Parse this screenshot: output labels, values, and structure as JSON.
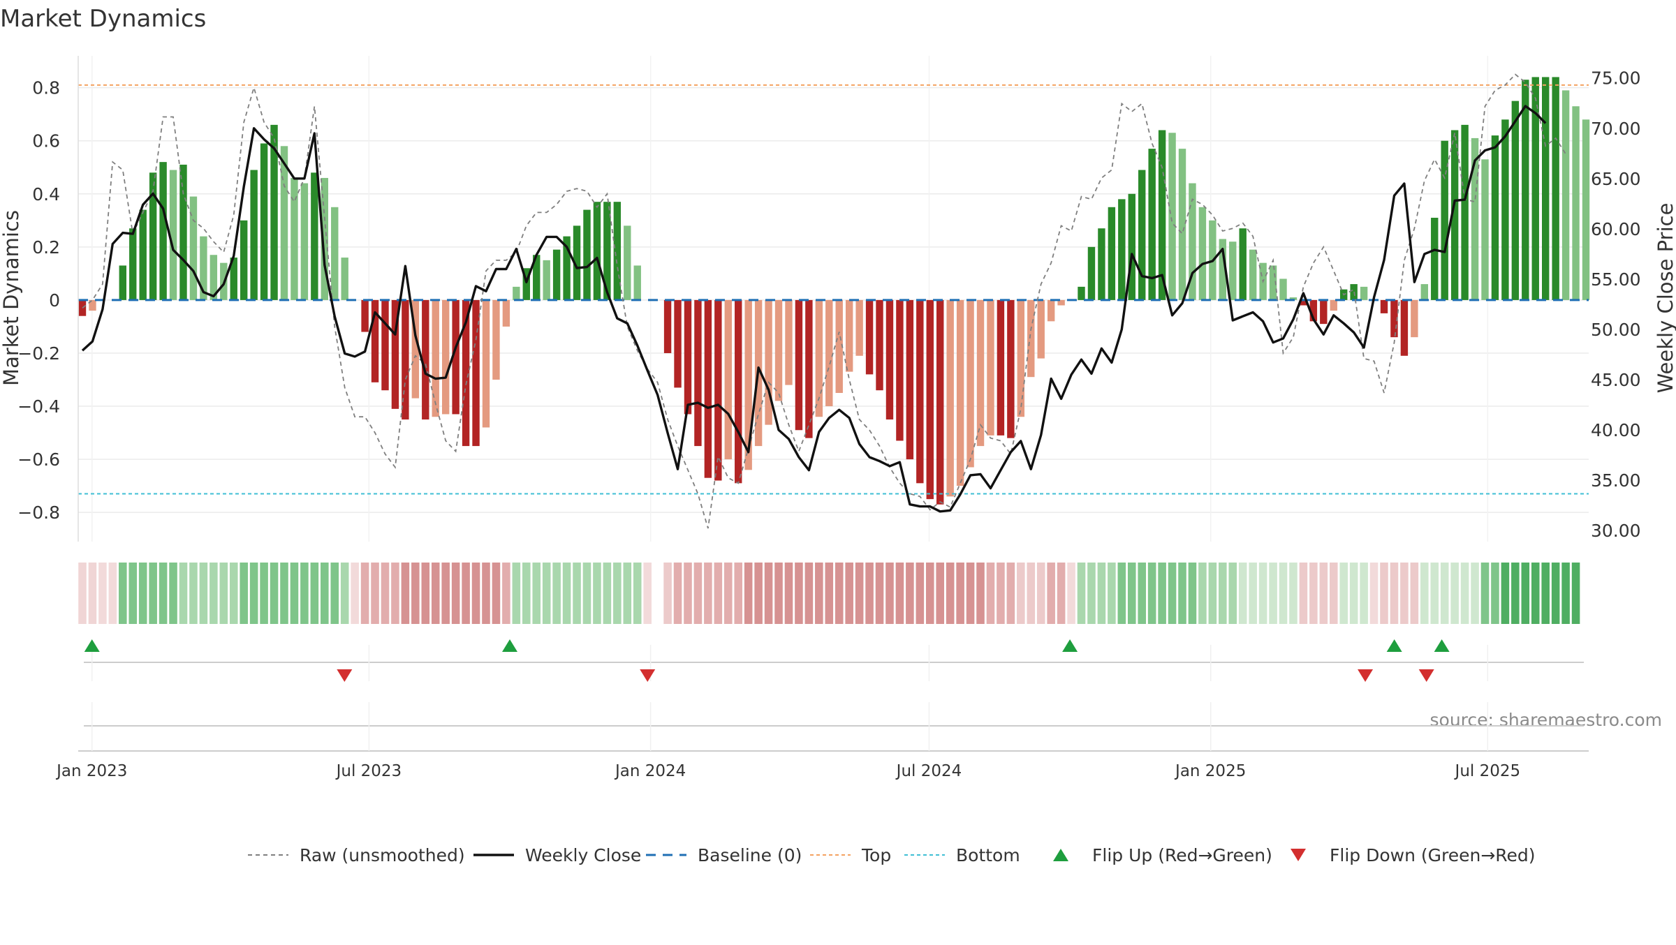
{
  "chart_data": {
    "type": "bar",
    "title": "Market Dynamics",
    "ylabel": "Market Dynamics",
    "ylabel_right": "Weekly Close Price",
    "source_note": "source: sharemaestro.com",
    "ylim": [
      -0.91,
      0.92
    ],
    "ylim_right": [
      28.9,
      77.2
    ],
    "yticks": [
      -0.8,
      -0.6,
      -0.4,
      -0.2,
      0,
      0.2,
      0.4,
      0.6,
      0.8
    ],
    "ytick_labels": [
      "−0.8",
      "−0.6",
      "−0.4",
      "−0.2",
      "0",
      "0.2",
      "0.4",
      "0.6",
      "0.8"
    ],
    "yticks_right": [
      30,
      35,
      40,
      45,
      50,
      55,
      60,
      65,
      70,
      75
    ],
    "ytick_labels_right": [
      "30.00",
      "35.00",
      "40.00",
      "45.00",
      "50.00",
      "55.00",
      "60.00",
      "65.00",
      "70.00",
      "75.00"
    ],
    "x_start": "2022-12-23",
    "x_end": "2025-09-05",
    "xticks": [
      "2023-01-01",
      "2023-07-01",
      "2024-01-01",
      "2024-07-01",
      "2025-01-01",
      "2025-07-01"
    ],
    "xtick_labels": [
      "Jan 2023",
      "Jul 2023",
      "Jan 2024",
      "Jul 2024",
      "Jan 2025",
      "Jul 2025"
    ],
    "bars": [
      -0.06,
      -0.04,
      0,
      0,
      0.13,
      0.27,
      0.34,
      0.48,
      0.52,
      0.49,
      0.51,
      0.39,
      0.24,
      0.17,
      0.14,
      0.16,
      0.3,
      0.49,
      0.59,
      0.66,
      0.58,
      0.46,
      0.44,
      0.48,
      0.46,
      0.35,
      0.16,
      0,
      -0.12,
      -0.31,
      -0.34,
      -0.41,
      -0.45,
      -0.37,
      -0.45,
      -0.44,
      -0.43,
      -0.43,
      -0.55,
      -0.55,
      -0.48,
      -0.3,
      -0.1,
      0.05,
      0.12,
      0.17,
      0.15,
      0.19,
      0.24,
      0.28,
      0.34,
      0.37,
      0.37,
      0.37,
      0.28,
      0.13,
      0,
      0,
      -0.2,
      -0.33,
      -0.43,
      -0.55,
      -0.67,
      -0.68,
      -0.6,
      -0.69,
      -0.64,
      -0.55,
      -0.47,
      -0.38,
      -0.32,
      -0.49,
      -0.52,
      -0.44,
      -0.4,
      -0.35,
      -0.27,
      -0.21,
      -0.28,
      -0.34,
      -0.45,
      -0.53,
      -0.6,
      -0.69,
      -0.75,
      -0.77,
      -0.74,
      -0.7,
      -0.63,
      -0.55,
      -0.51,
      -0.51,
      -0.52,
      -0.44,
      -0.29,
      -0.22,
      -0.08,
      -0.02,
      0,
      0.05,
      0.2,
      0.27,
      0.35,
      0.38,
      0.4,
      0.49,
      0.57,
      0.64,
      0.63,
      0.57,
      0.44,
      0.35,
      0.3,
      0.23,
      0.22,
      0.27,
      0.19,
      0.14,
      0.13,
      0.08,
      0.01,
      -0.02,
      -0.08,
      -0.09,
      -0.04,
      0.04,
      0.06,
      0.05,
      0,
      -0.05,
      -0.14,
      -0.21,
      -0.14,
      0.06,
      0.31,
      0.6,
      0.64,
      0.66,
      0.61,
      0.53,
      0.62,
      0.68,
      0.75,
      0.83,
      0.84,
      0.84,
      0.84,
      0.79,
      0.73,
      0.68
    ],
    "raw": [
      -0.03,
      0,
      0.06,
      0.52,
      0.49,
      0.25,
      0.33,
      0.41,
      0.69,
      0.69,
      0.4,
      0.3,
      0.27,
      0.22,
      0.18,
      0.32,
      0.67,
      0.8,
      0.67,
      0.61,
      0.43,
      0.37,
      0.46,
      0.73,
      0.31,
      -0.1,
      -0.33,
      -0.44,
      -0.44,
      -0.5,
      -0.58,
      -0.63,
      -0.3,
      -0.21,
      -0.24,
      -0.39,
      -0.53,
      -0.57,
      -0.32,
      -0.15,
      0.11,
      0.15,
      0.15,
      0.18,
      0.28,
      0.33,
      0.33,
      0.36,
      0.41,
      0.42,
      0.41,
      0.35,
      0.4,
      0.13,
      -0.1,
      -0.19,
      -0.26,
      -0.31,
      -0.45,
      -0.55,
      -0.64,
      -0.73,
      -0.86,
      -0.59,
      -0.67,
      -0.69,
      -0.56,
      -0.43,
      -0.31,
      -0.35,
      -0.47,
      -0.57,
      -0.47,
      -0.37,
      -0.25,
      -0.12,
      -0.3,
      -0.45,
      -0.49,
      -0.55,
      -0.63,
      -0.69,
      -0.73,
      -0.74,
      -0.79,
      -0.76,
      -0.78,
      -0.69,
      -0.6,
      -0.47,
      -0.52,
      -0.53,
      -0.58,
      -0.41,
      -0.11,
      0.06,
      0.14,
      0.28,
      0.26,
      0.39,
      0.38,
      0.46,
      0.49,
      0.74,
      0.71,
      0.74,
      0.59,
      0.5,
      0.29,
      0.25,
      0.38,
      0.36,
      0.32,
      0.26,
      0.27,
      0.29,
      0.24,
      0.07,
      0.15,
      -0.2,
      -0.14,
      0.05,
      0.14,
      0.2,
      0.11,
      0.02,
      0.04,
      -0.22,
      -0.23,
      -0.35,
      -0.16,
      0.15,
      0.27,
      0.45,
      0.53,
      0.46,
      0.63,
      0.38,
      0.37,
      0.73,
      0.79,
      0.81,
      0.85,
      0.82,
      0.76,
      0.58,
      0.61,
      0.55
    ],
    "close": [
      47.9,
      48.8,
      52.0,
      58.5,
      59.6,
      59.5,
      62.4,
      63.5,
      62.0,
      57.9,
      56.9,
      55.8,
      53.7,
      53.3,
      54.5,
      57.3,
      64.2,
      70.0,
      68.9,
      68.0,
      66.5,
      65.0,
      65.0,
      69.5,
      56.4,
      51.3,
      47.6,
      47.3,
      47.8,
      51.7,
      50.6,
      49.5,
      56.3,
      49.4,
      45.6,
      45.1,
      45.2,
      48.2,
      50.7,
      54.3,
      53.8,
      56.0,
      56.0,
      58.0,
      54.7,
      57.4,
      59.2,
      59.2,
      58.2,
      56.1,
      56.2,
      57.1,
      53.7,
      51.1,
      50.6,
      48.4,
      45.9,
      43.5,
      39.7,
      36.1,
      42.5,
      42.7,
      42.2,
      42.5,
      41.6,
      39.8,
      37.8,
      46.2,
      44.0,
      40.0,
      39.1,
      37.3,
      36.0,
      39.8,
      41.2,
      42.0,
      41.2,
      38.6,
      37.3,
      36.9,
      36.4,
      36.8,
      32.6,
      32.4,
      32.4,
      31.9,
      32.0,
      33.6,
      35.5,
      35.6,
      34.2,
      36.0,
      37.8,
      38.9,
      36.1,
      39.5,
      45.1,
      43.1,
      45.5,
      47.0,
      45.6,
      48.1,
      46.7,
      50.0,
      57.5,
      55.3,
      55.1,
      55.4,
      51.4,
      52.6,
      55.6,
      56.5,
      56.8,
      58.0,
      50.9,
      51.3,
      51.7,
      50.8,
      48.7,
      49.1,
      51.0,
      53.6,
      51.0,
      49.5,
      51.4,
      50.6,
      49.7,
      48.2,
      53.2,
      56.9,
      63.3,
      64.5,
      54.7,
      57.5,
      57.9,
      57.7,
      62.8,
      62.9,
      66.8,
      67.8,
      68.1,
      69.2,
      70.7,
      72.2,
      71.5,
      70.5
    ],
    "states": [
      [
        "2022-12-23",
        "2023-01-06",
        "red"
      ],
      [
        "2023-01-06",
        "2023-06-24",
        "green"
      ],
      [
        "2023-06-24",
        "2023-10-07",
        "red"
      ],
      [
        "2023-10-07",
        "2023-12-27",
        "green"
      ],
      [
        "2023-12-27",
        "2024-09-21",
        "red"
      ],
      [
        "2024-09-21",
        "2025-04-15",
        "green"
      ],
      [
        "2025-04-15",
        "2025-05-11",
        "red"
      ],
      [
        "2025-05-11",
        "2025-06-01",
        "green"
      ],
      [
        "2025-06-01",
        "2025-09-05",
        "red-then-green"
      ]
    ],
    "strip_shades": [
      0,
      1,
      2,
      2,
      3,
      3,
      3,
      3,
      3,
      3,
      2,
      2,
      2,
      2,
      2,
      2,
      3,
      3,
      3,
      3,
      3,
      3,
      3,
      3,
      3,
      3,
      2,
      2,
      2,
      2,
      2,
      2,
      3,
      3,
      3,
      3,
      3,
      3,
      3,
      3,
      3,
      3,
      2,
      2,
      2,
      2,
      2,
      2,
      2,
      2,
      2,
      2,
      2,
      2,
      2,
      2,
      2,
      2,
      1,
      2,
      2,
      2,
      2,
      2,
      2,
      2,
      3,
      3,
      3,
      3,
      3,
      3,
      3,
      3,
      3,
      3,
      3,
      3,
      3,
      3,
      3,
      3,
      3,
      3,
      3,
      3,
      3,
      3,
      3,
      3,
      2,
      2,
      2,
      1,
      1,
      1,
      2,
      2,
      2,
      2,
      2,
      2,
      2,
      3,
      3,
      3,
      3,
      3,
      3,
      3,
      3,
      2,
      2,
      2,
      2,
      1,
      1,
      1,
      1,
      1,
      1,
      1,
      1,
      1,
      1,
      1,
      1,
      1,
      1,
      1,
      1,
      1,
      1,
      1,
      1,
      1,
      1,
      1,
      1,
      3,
      3,
      4,
      4,
      4,
      4,
      4,
      4,
      4,
      4
    ],
    "top_line": 0.81,
    "bottom_line": -0.73,
    "flip_up": [
      "2023-01-01",
      "2023-10-01",
      "2024-10-01",
      "2025-05-01",
      "2025-06-01"
    ],
    "flip_down": [
      "2023-06-15",
      "2023-12-30",
      "2025-04-12",
      "2025-05-22"
    ],
    "colors": {
      "green_strong": "#2a8a2a",
      "green_light": "#82c182",
      "red_strong": "#b22424",
      "red_light": "#e49a80",
      "close_line": "#111111",
      "raw_line": "#7f7f7f",
      "baseline": "#1f6fb4",
      "top_line": "#f4a261",
      "bottom_line": "#3fbfd4",
      "flip_up": "#1e9e3e",
      "flip_down": "#d32f2f"
    },
    "legend": {
      "placement": "bottom-center",
      "entries": [
        {
          "label": "Raw (unsmoothed)",
          "style": "raw"
        },
        {
          "label": "Weekly Close",
          "style": "close"
        },
        {
          "label": "Baseline (0)",
          "style": "baseline"
        },
        {
          "label": "Top",
          "style": "top"
        },
        {
          "label": "Bottom",
          "style": "bottom"
        },
        {
          "label": "Flip Up (Red→Green)",
          "style": "flip_up"
        },
        {
          "label": "Flip Down (Green→Red)",
          "style": "flip_down"
        }
      ]
    },
    "grid": true
  }
}
